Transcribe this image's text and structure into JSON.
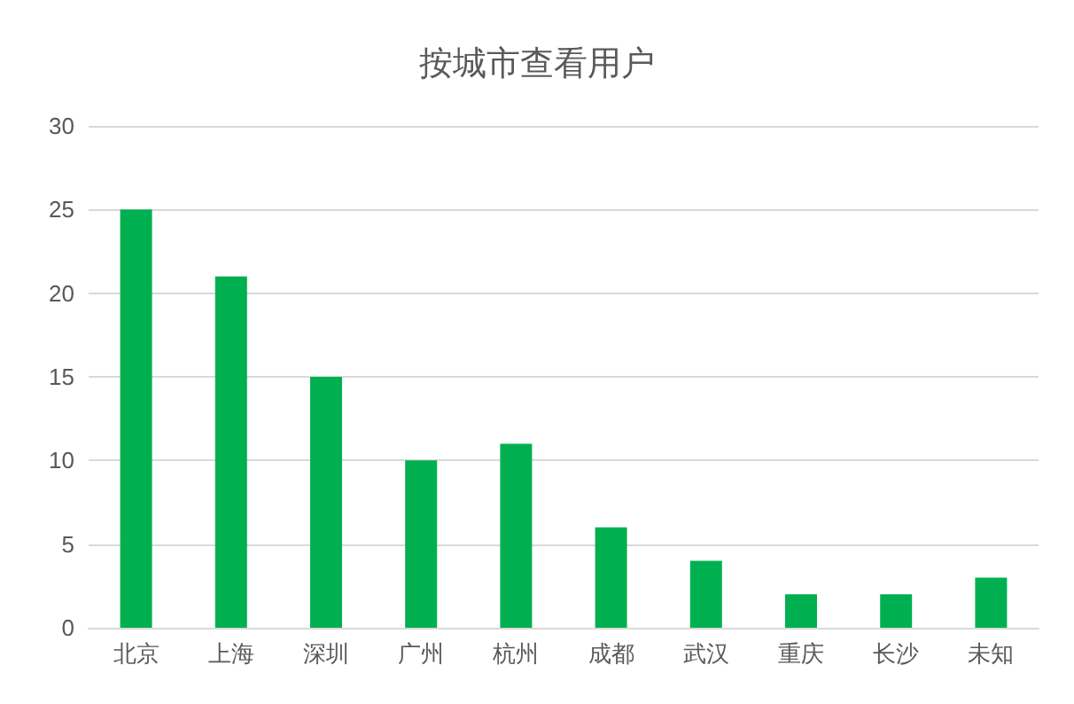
{
  "chart_data": {
    "type": "bar",
    "title": "按城市查看用户",
    "categories": [
      "北京",
      "上海",
      "深圳",
      "广州",
      "杭州",
      "成都",
      "武汉",
      "重庆",
      "长沙",
      "未知"
    ],
    "values": [
      25,
      21,
      15,
      10,
      11,
      6,
      4,
      2,
      2,
      3
    ],
    "color": "#00b050",
    "ylim": [
      0,
      30
    ],
    "yticks": [
      0,
      5,
      10,
      15,
      20,
      25,
      30
    ],
    "grid": "y"
  }
}
